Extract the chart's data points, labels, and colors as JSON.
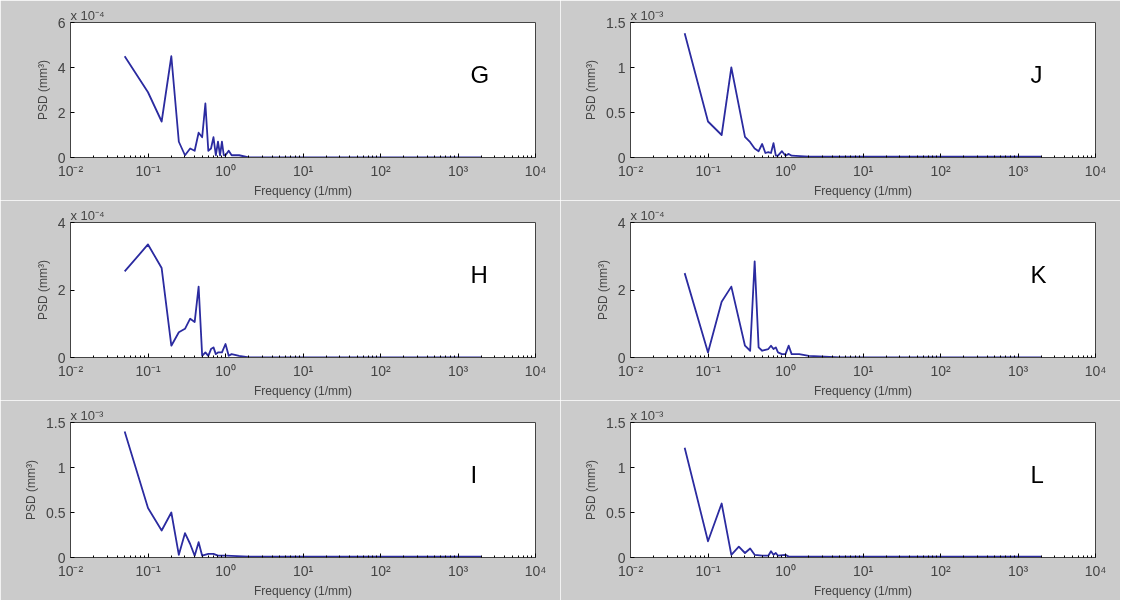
{
  "chart_data": [
    {
      "type": "line",
      "xlabel": "Frequency (1/mm)",
      "ylabel": "PSD (mm³)",
      "annotations": [
        "x 10⁻⁴",
        "G"
      ],
      "color": "#2b2ba0",
      "log": "x",
      "grid": false,
      "x": [
        0.05,
        0.1,
        0.15,
        0.2,
        0.25,
        0.3,
        0.35,
        0.4,
        0.45,
        0.5,
        0.55,
        0.6,
        0.65,
        0.7,
        0.75,
        0.8,
        0.85,
        0.9,
        0.95,
        1.0,
        1.1,
        1.2,
        1.5,
        2,
        5,
        10,
        100,
        1000,
        2000
      ],
      "values": [
        4.5,
        2.9,
        1.6,
        4.5,
        0.7,
        0.1,
        0.4,
        0.3,
        1.1,
        0.9,
        2.4,
        0.3,
        0.4,
        0.9,
        0.1,
        0.7,
        0.1,
        0.7,
        0.1,
        0.1,
        0.3,
        0.1,
        0.1,
        0,
        0,
        0,
        0,
        0,
        0
      ],
      "xlim": [
        0.01,
        10000
      ],
      "ylim": [
        0,
        6
      ],
      "xticks": [
        {
          "value": 0.01,
          "label": "10⁻²"
        },
        {
          "value": 0.1,
          "label": "10⁻¹"
        },
        {
          "value": 1,
          "label": "10⁰"
        },
        {
          "value": 10,
          "label": "10¹"
        },
        {
          "value": 100,
          "label": "10²"
        },
        {
          "value": 1000,
          "label": "10³"
        },
        {
          "value": 10000,
          "label": "10⁴"
        }
      ],
      "yticks": [
        0,
        2,
        4,
        6
      ]
    },
    {
      "type": "line",
      "xlabel": "Frequency (1/mm)",
      "ylabel": "PSD (mm³)",
      "annotations": [
        "x 10⁻³",
        "J"
      ],
      "color": "#2b2ba0",
      "log": "x",
      "grid": false,
      "x": [
        0.05,
        0.1,
        0.15,
        0.2,
        0.3,
        0.35,
        0.4,
        0.45,
        0.5,
        0.55,
        0.6,
        0.65,
        0.7,
        0.75,
        0.8,
        0.9,
        1.0,
        1.1,
        1.2,
        2,
        5,
        10,
        100,
        1000,
        2000
      ],
      "values": [
        1.38,
        0.4,
        0.25,
        1.0,
        0.23,
        0.17,
        0.1,
        0.07,
        0.15,
        0.05,
        0.06,
        0.05,
        0.16,
        0.02,
        0.02,
        0.07,
        0.02,
        0.04,
        0.02,
        0.01,
        0.01,
        0.01,
        0.01,
        0.01,
        0.01
      ],
      "xlim": [
        0.01,
        10000
      ],
      "ylim": [
        0,
        1.5
      ],
      "xticks": [
        {
          "value": 0.01,
          "label": "10⁻²"
        },
        {
          "value": 0.1,
          "label": "10⁻¹"
        },
        {
          "value": 1,
          "label": "10⁰"
        },
        {
          "value": 10,
          "label": "10¹"
        },
        {
          "value": 100,
          "label": "10²"
        },
        {
          "value": 1000,
          "label": "10³"
        },
        {
          "value": 10000,
          "label": "10⁴"
        }
      ],
      "yticks": [
        0,
        0.5,
        1,
        1.5
      ]
    },
    {
      "type": "line",
      "xlabel": "Frequency (1/mm)",
      "ylabel": "PSD (mm³)",
      "annotations": [
        "x 10⁻⁴",
        "H"
      ],
      "color": "#2b2ba0",
      "log": "x",
      "grid": false,
      "x": [
        0.05,
        0.1,
        0.15,
        0.2,
        0.25,
        0.3,
        0.35,
        0.4,
        0.45,
        0.5,
        0.55,
        0.6,
        0.65,
        0.7,
        0.75,
        0.8,
        0.9,
        1.0,
        1.1,
        1.2,
        1.5,
        2,
        5,
        10,
        100,
        1000,
        2000
      ],
      "values": [
        2.55,
        3.35,
        2.65,
        0.35,
        0.75,
        0.85,
        1.15,
        1.05,
        2.1,
        0.05,
        0.15,
        0.05,
        0.25,
        0.3,
        0.1,
        0.15,
        0.15,
        0.4,
        0.05,
        0.1,
        0.05,
        0,
        0,
        0,
        0,
        0,
        0
      ],
      "xlim": [
        0.01,
        10000
      ],
      "ylim": [
        0,
        4
      ],
      "xticks": [
        {
          "value": 0.01,
          "label": "10⁻²"
        },
        {
          "value": 0.1,
          "label": "10⁻¹"
        },
        {
          "value": 1,
          "label": "10⁰"
        },
        {
          "value": 10,
          "label": "10¹"
        },
        {
          "value": 100,
          "label": "10²"
        },
        {
          "value": 1000,
          "label": "10³"
        },
        {
          "value": 10000,
          "label": "10⁴"
        }
      ],
      "yticks": [
        0,
        2,
        4
      ]
    },
    {
      "type": "line",
      "xlabel": "Frequency (1/mm)",
      "ylabel": "PSD (mm³)",
      "annotations": [
        "x 10⁻⁴",
        "K"
      ],
      "color": "#2b2ba0",
      "log": "x",
      "grid": false,
      "x": [
        0.05,
        0.1,
        0.15,
        0.2,
        0.3,
        0.35,
        0.4,
        0.45,
        0.5,
        0.6,
        0.65,
        0.7,
        0.75,
        0.8,
        0.9,
        1.0,
        1.1,
        1.2,
        1.5,
        2,
        5,
        10,
        100,
        1000,
        2000
      ],
      "values": [
        2.5,
        0.15,
        1.65,
        2.1,
        0.35,
        0.2,
        2.85,
        0.3,
        0.2,
        0.25,
        0.35,
        0.25,
        0.3,
        0.15,
        0.1,
        0.1,
        0.35,
        0.1,
        0.1,
        0.05,
        0,
        0,
        0,
        0,
        0
      ],
      "xlim": [
        0.01,
        10000
      ],
      "ylim": [
        0,
        4
      ],
      "xticks": [
        {
          "value": 0.01,
          "label": "10⁻²"
        },
        {
          "value": 0.1,
          "label": "10⁻¹"
        },
        {
          "value": 1,
          "label": "10⁰"
        },
        {
          "value": 10,
          "label": "10¹"
        },
        {
          "value": 100,
          "label": "10²"
        },
        {
          "value": 1000,
          "label": "10³"
        },
        {
          "value": 10000,
          "label": "10⁴"
        }
      ],
      "yticks": [
        0,
        2,
        4
      ]
    },
    {
      "type": "line",
      "xlabel": "Frequency (1/mm)",
      "ylabel": "PSD (mm³)",
      "annotations": [
        "x 10⁻³",
        "I"
      ],
      "color": "#2b2ba0",
      "log": "x",
      "grid": false,
      "x": [
        0.05,
        0.1,
        0.15,
        0.2,
        0.25,
        0.3,
        0.35,
        0.4,
        0.45,
        0.5,
        0.6,
        0.7,
        0.8,
        1.0,
        2,
        5,
        10,
        100,
        1000,
        2000
      ],
      "values": [
        1.4,
        0.55,
        0.3,
        0.5,
        0.03,
        0.27,
        0.15,
        0.02,
        0.17,
        0.02,
        0.04,
        0.04,
        0.02,
        0.02,
        0.01,
        0.01,
        0.01,
        0.01,
        0.01,
        0.01
      ],
      "xlim": [
        0.01,
        10000
      ],
      "ylim": [
        0,
        1.5
      ],
      "xticks": [
        {
          "value": 0.01,
          "label": "10⁻²"
        },
        {
          "value": 0.1,
          "label": "10⁻¹"
        },
        {
          "value": 1,
          "label": "10⁰"
        },
        {
          "value": 10,
          "label": "10¹"
        },
        {
          "value": 100,
          "label": "10²"
        },
        {
          "value": 1000,
          "label": "10³"
        },
        {
          "value": 10000,
          "label": "10⁴"
        }
      ],
      "yticks": [
        0,
        0.5,
        1,
        1.5
      ]
    },
    {
      "type": "line",
      "xlabel": "Frequency (1/mm)",
      "ylabel": "PSD (mm³)",
      "annotations": [
        "x 10⁻³",
        "L"
      ],
      "color": "#2b2ba0",
      "log": "x",
      "grid": false,
      "x": [
        0.05,
        0.1,
        0.15,
        0.2,
        0.25,
        0.3,
        0.35,
        0.4,
        0.5,
        0.6,
        0.65,
        0.7,
        0.75,
        0.8,
        1.0,
        1.1,
        2,
        5,
        10,
        100,
        1000,
        2000
      ],
      "values": [
        1.22,
        0.18,
        0.6,
        0.03,
        0.12,
        0.05,
        0.1,
        0.03,
        0.02,
        0.02,
        0.07,
        0.03,
        0.05,
        0.02,
        0.03,
        0.01,
        0.01,
        0.01,
        0.01,
        0.01,
        0.01,
        0.01
      ],
      "xlim": [
        0.01,
        10000
      ],
      "ylim": [
        0,
        1.5
      ],
      "xticks": [
        {
          "value": 0.01,
          "label": "10⁻²"
        },
        {
          "value": 0.1,
          "label": "10⁻¹"
        },
        {
          "value": 1,
          "label": "10⁰"
        },
        {
          "value": 10,
          "label": "10¹"
        },
        {
          "value": 100,
          "label": "10²"
        },
        {
          "value": 1000,
          "label": "10³"
        },
        {
          "value": 10000,
          "label": "10⁴"
        }
      ],
      "yticks": [
        0,
        0.5,
        1,
        1.5
      ]
    }
  ]
}
